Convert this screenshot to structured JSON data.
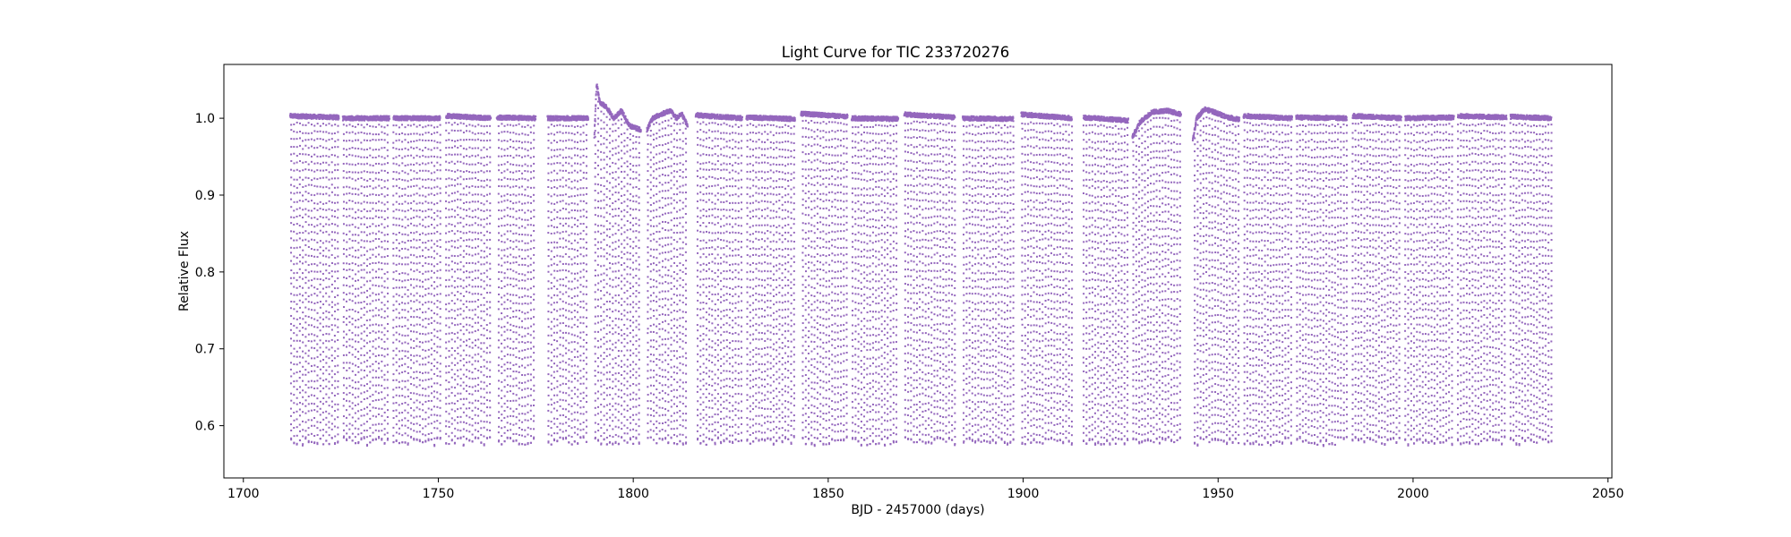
{
  "chart_data": {
    "type": "scatter",
    "title": "Light Curve for TIC 233720276",
    "xlabel": "BJD - 2457000 (days)",
    "ylabel": "Relative Flux",
    "xlim": [
      1695,
      2051
    ],
    "ylim": [
      0.532,
      1.07
    ],
    "xticks": [
      1700,
      1750,
      1800,
      1850,
      1900,
      1950,
      2000,
      2050
    ],
    "yticks": [
      0.6,
      0.7,
      0.8,
      0.9,
      1.0
    ],
    "grid": false,
    "legend": "none",
    "marker_color": "#9467bd",
    "series": [
      {
        "period_days": 0.75,
        "eclipse_min_flux": 0.585,
        "segments": [
          {
            "start": 1712.0,
            "end": 1724.5,
            "baseline": [
              [
                1712.0,
                1.003
              ],
              [
                1724.5,
                1.001
              ]
            ]
          },
          {
            "start": 1725.5,
            "end": 1737.5,
            "baseline": [
              [
                1725.5,
                1.0
              ],
              [
                1737.5,
                1.0
              ]
            ]
          },
          {
            "start": 1738.5,
            "end": 1750.5,
            "baseline": [
              [
                1738.5,
                1.0
              ],
              [
                1750.5,
                1.0
              ]
            ]
          },
          {
            "start": 1752.0,
            "end": 1763.5,
            "baseline": [
              [
                1752.0,
                1.003
              ],
              [
                1763.5,
                1.0
              ]
            ]
          },
          {
            "start": 1765.0,
            "end": 1775.0,
            "baseline": [
              [
                1765.0,
                1.001
              ],
              [
                1775.0,
                1.0
              ]
            ]
          },
          {
            "start": 1778.0,
            "end": 1788.5,
            "baseline": [
              [
                1778.0,
                1.0
              ],
              [
                1788.5,
                1.0
              ]
            ]
          },
          {
            "start": 1790.0,
            "end": 1802.0,
            "baseline": [
              [
                1790.0,
                0.975
              ],
              [
                1790.6,
                1.045
              ],
              [
                1791.5,
                1.02
              ],
              [
                1793.0,
                1.015
              ],
              [
                1795.0,
                1.0
              ],
              [
                1797.0,
                1.01
              ],
              [
                1799.0,
                0.99
              ],
              [
                1802.0,
                0.985
              ]
            ]
          },
          {
            "start": 1803.5,
            "end": 1814.0,
            "baseline": [
              [
                1803.5,
                0.985
              ],
              [
                1805.0,
                1.0
              ],
              [
                1807.0,
                1.005
              ],
              [
                1809.5,
                1.01
              ],
              [
                1811.0,
                1.0
              ],
              [
                1812.5,
                1.005
              ],
              [
                1814.0,
                0.99
              ]
            ]
          },
          {
            "start": 1816.0,
            "end": 1828.0,
            "baseline": [
              [
                1816.0,
                1.004
              ],
              [
                1828.0,
                1.0
              ]
            ]
          },
          {
            "start": 1829.0,
            "end": 1841.5,
            "baseline": [
              [
                1829.0,
                1.001
              ],
              [
                1841.5,
                0.999
              ]
            ]
          },
          {
            "start": 1843.0,
            "end": 1855.0,
            "baseline": [
              [
                1843.0,
                1.006
              ],
              [
                1855.0,
                1.002
              ]
            ]
          },
          {
            "start": 1856.0,
            "end": 1868.0,
            "baseline": [
              [
                1856.0,
                1.0
              ],
              [
                1868.0,
                0.999
              ]
            ]
          },
          {
            "start": 1869.5,
            "end": 1882.5,
            "baseline": [
              [
                1869.5,
                1.005
              ],
              [
                1882.5,
                1.001
              ]
            ]
          },
          {
            "start": 1884.5,
            "end": 1897.5,
            "baseline": [
              [
                1884.5,
                1.0
              ],
              [
                1897.5,
                0.999
              ]
            ]
          },
          {
            "start": 1899.5,
            "end": 1912.5,
            "baseline": [
              [
                1899.5,
                1.005
              ],
              [
                1912.5,
                1.0
              ]
            ]
          },
          {
            "start": 1915.5,
            "end": 1927.0,
            "baseline": [
              [
                1915.5,
                1.001
              ],
              [
                1927.0,
                0.997
              ]
            ]
          },
          {
            "start": 1928.0,
            "end": 1940.5,
            "baseline": [
              [
                1928.0,
                0.975
              ],
              [
                1930.0,
                0.995
              ],
              [
                1933.0,
                1.008
              ],
              [
                1937.0,
                1.01
              ],
              [
                1940.5,
                1.005
              ]
            ]
          },
          {
            "start": 1943.5,
            "end": 1955.5,
            "baseline": [
              [
                1943.5,
                0.97
              ],
              [
                1944.5,
                1.0
              ],
              [
                1946.5,
                1.012
              ],
              [
                1949.0,
                1.008
              ],
              [
                1952.0,
                1.002
              ],
              [
                1955.5,
                0.998
              ]
            ]
          },
          {
            "start": 1956.5,
            "end": 1969.0,
            "baseline": [
              [
                1956.5,
                1.003
              ],
              [
                1969.0,
                1.0
              ]
            ]
          },
          {
            "start": 1970.0,
            "end": 1983.0,
            "baseline": [
              [
                1970.0,
                1.001
              ],
              [
                1983.0,
                1.0
              ]
            ]
          },
          {
            "start": 1984.5,
            "end": 1997.0,
            "baseline": [
              [
                1984.5,
                1.003
              ],
              [
                1997.0,
                1.0
              ]
            ]
          },
          {
            "start": 1998.0,
            "end": 2010.5,
            "baseline": [
              [
                1998.0,
                1.0
              ],
              [
                2010.5,
                1.001
              ]
            ]
          },
          {
            "start": 2011.5,
            "end": 2024.0,
            "baseline": [
              [
                2011.5,
                1.003
              ],
              [
                2024.0,
                1.001
              ]
            ]
          },
          {
            "start": 2025.0,
            "end": 2035.5,
            "baseline": [
              [
                2025.0,
                1.002
              ],
              [
                2035.5,
                1.0
              ]
            ]
          }
        ]
      }
    ]
  }
}
